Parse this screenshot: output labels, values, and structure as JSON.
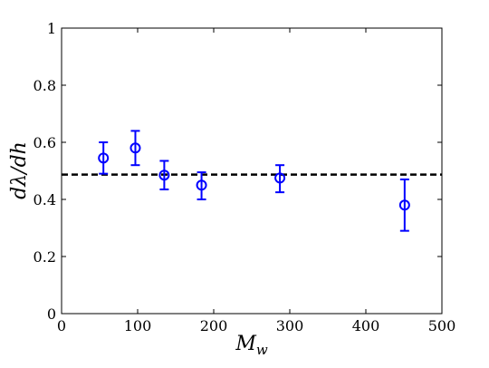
{
  "chart_data": {
    "type": "scatter",
    "title": "",
    "xlabel": "M_w",
    "ylabel": "dλ/dh",
    "xlim": [
      0,
      500
    ],
    "ylim": [
      0,
      1
    ],
    "xticks": [
      0,
      100,
      200,
      300,
      400,
      500
    ],
    "yticks": [
      0,
      0.2,
      0.4,
      0.6,
      0.8,
      1
    ],
    "xtick_labels": [
      "0",
      "100",
      "200",
      "300",
      "400",
      "500"
    ],
    "ytick_labels": [
      "0",
      "0.2",
      "0.4",
      "0.6",
      "0.8",
      "1"
    ],
    "grid": false,
    "series": [
      {
        "marker": "circle",
        "color": "#0000ff",
        "points": [
          {
            "x": 55,
            "y": 0.545,
            "err_low": 0.49,
            "err_high": 0.6
          },
          {
            "x": 97,
            "y": 0.58,
            "err_low": 0.52,
            "err_high": 0.64
          },
          {
            "x": 135,
            "y": 0.485,
            "err_low": 0.435,
            "err_high": 0.535
          },
          {
            "x": 184,
            "y": 0.45,
            "err_low": 0.4,
            "err_high": 0.495
          },
          {
            "x": 287,
            "y": 0.475,
            "err_low": 0.425,
            "err_high": 0.52
          },
          {
            "x": 451,
            "y": 0.38,
            "err_low": 0.29,
            "err_high": 0.47
          }
        ]
      }
    ],
    "reference_line": {
      "y": 0.487,
      "style": "dashed",
      "color": "#000000"
    }
  }
}
